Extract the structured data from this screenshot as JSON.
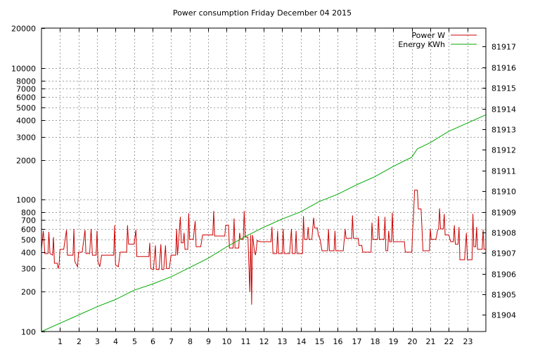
{
  "chart_data": {
    "type": "line",
    "title": "Power consumption Friday December 04 2015",
    "xlabel": "",
    "ylabel": "",
    "x_tick_labels": [
      "1",
      "2",
      "3",
      "4",
      "5",
      "6",
      "7",
      "8",
      "9",
      "10",
      "11",
      "12",
      "13",
      "14",
      "15",
      "16",
      "17",
      "18",
      "19",
      "20",
      "21",
      "22",
      "23"
    ],
    "x_range": [
      0,
      24
    ],
    "y_left": {
      "scale": "log",
      "range": [
        100,
        20000
      ],
      "tick_values": [
        100,
        200,
        300,
        400,
        500,
        600,
        700,
        800,
        1000,
        2000,
        3000,
        4000,
        5000,
        6000,
        7000,
        8000,
        10000,
        20000
      ],
      "tick_labels": [
        "100",
        "200",
        "300",
        "400",
        "500",
        "600",
        "700",
        "800",
        "1000",
        "2000",
        "3000",
        "4000",
        "5000",
        "6000",
        "7000",
        "8000",
        "10000",
        "20000"
      ]
    },
    "y_right": {
      "scale": "linear",
      "range": [
        81903.2,
        81917.9
      ],
      "tick_values": [
        81904,
        81905,
        81906,
        81907,
        81908,
        81909,
        81910,
        81911,
        81912,
        81913,
        81914,
        81915,
        81916,
        81917
      ],
      "tick_labels": [
        "81904",
        "81905",
        "81906",
        "81907",
        "81908",
        "81909",
        "81910",
        "81911",
        "81912",
        "81913",
        "81914",
        "81915",
        "81916",
        "81917"
      ]
    },
    "grid": true,
    "legend_position": "top-right",
    "series": [
      {
        "name": "Power W",
        "color": "#cc0000",
        "axis": "left",
        "points": [
          [
            0.0,
            420
          ],
          [
            0.1,
            580
          ],
          [
            0.18,
            390
          ],
          [
            0.35,
            390
          ],
          [
            0.4,
            570
          ],
          [
            0.46,
            390
          ],
          [
            0.6,
            380
          ],
          [
            0.65,
            520
          ],
          [
            0.7,
            330
          ],
          [
            0.85,
            330
          ],
          [
            0.9,
            300
          ],
          [
            0.95,
            320
          ],
          [
            1.0,
            420
          ],
          [
            1.2,
            420
          ],
          [
            1.35,
            590
          ],
          [
            1.4,
            380
          ],
          [
            1.7,
            380
          ],
          [
            1.75,
            600
          ],
          [
            1.8,
            340
          ],
          [
            1.95,
            310
          ],
          [
            2.0,
            400
          ],
          [
            2.2,
            400
          ],
          [
            2.35,
            590
          ],
          [
            2.4,
            390
          ],
          [
            2.6,
            390
          ],
          [
            2.68,
            600
          ],
          [
            2.75,
            380
          ],
          [
            2.95,
            380
          ],
          [
            3.0,
            580
          ],
          [
            3.05,
            340
          ],
          [
            3.15,
            310
          ],
          [
            3.25,
            380
          ],
          [
            3.5,
            380
          ],
          [
            3.9,
            380
          ],
          [
            3.95,
            640
          ],
          [
            4.0,
            320
          ],
          [
            4.15,
            310
          ],
          [
            4.25,
            400
          ],
          [
            4.6,
            400
          ],
          [
            4.65,
            640
          ],
          [
            4.7,
            460
          ],
          [
            5.0,
            460
          ],
          [
            5.1,
            590
          ],
          [
            5.15,
            370
          ],
          [
            5.8,
            370
          ],
          [
            5.85,
            470
          ],
          [
            5.9,
            300
          ],
          [
            6.05,
            295
          ],
          [
            6.15,
            450
          ],
          [
            6.2,
            295
          ],
          [
            6.35,
            295
          ],
          [
            6.45,
            460
          ],
          [
            6.5,
            295
          ],
          [
            6.6,
            295
          ],
          [
            6.7,
            450
          ],
          [
            6.75,
            300
          ],
          [
            6.9,
            300
          ],
          [
            7.0,
            380
          ],
          [
            7.25,
            380
          ],
          [
            7.3,
            600
          ],
          [
            7.35,
            380
          ],
          [
            7.4,
            480
          ],
          [
            7.5,
            740
          ],
          [
            7.55,
            470
          ],
          [
            7.65,
            470
          ],
          [
            7.7,
            560
          ],
          [
            7.75,
            420
          ],
          [
            7.9,
            420
          ],
          [
            7.95,
            790
          ],
          [
            8.0,
            500
          ],
          [
            8.2,
            500
          ],
          [
            8.3,
            690
          ],
          [
            8.35,
            440
          ],
          [
            8.6,
            440
          ],
          [
            8.7,
            540
          ],
          [
            9.0,
            540
          ],
          [
            9.25,
            540
          ],
          [
            9.3,
            820
          ],
          [
            9.35,
            530
          ],
          [
            9.9,
            530
          ],
          [
            9.95,
            640
          ],
          [
            10.1,
            640
          ],
          [
            10.15,
            430
          ],
          [
            10.35,
            430
          ],
          [
            10.4,
            720
          ],
          [
            10.45,
            430
          ],
          [
            10.65,
            430
          ],
          [
            10.7,
            560
          ],
          [
            10.75,
            500
          ],
          [
            10.9,
            500
          ],
          [
            10.95,
            820
          ],
          [
            11.0,
            520
          ],
          [
            11.15,
            520
          ],
          [
            11.25,
            200
          ],
          [
            11.3,
            540
          ],
          [
            11.35,
            160
          ],
          [
            11.4,
            540
          ],
          [
            11.5,
            410
          ],
          [
            11.55,
            380
          ],
          [
            11.6,
            420
          ],
          [
            11.65,
            490
          ],
          [
            11.8,
            480
          ],
          [
            12.4,
            480
          ],
          [
            12.45,
            620
          ],
          [
            12.5,
            390
          ],
          [
            12.7,
            390
          ],
          [
            12.75,
            580
          ],
          [
            12.8,
            390
          ],
          [
            13.0,
            390
          ],
          [
            13.05,
            600
          ],
          [
            13.1,
            390
          ],
          [
            13.4,
            390
          ],
          [
            13.5,
            600
          ],
          [
            13.55,
            390
          ],
          [
            13.7,
            390
          ],
          [
            13.75,
            580
          ],
          [
            13.8,
            390
          ],
          [
            14.1,
            390
          ],
          [
            14.15,
            750
          ],
          [
            14.2,
            500
          ],
          [
            14.35,
            500
          ],
          [
            14.4,
            620
          ],
          [
            14.45,
            500
          ],
          [
            14.6,
            500
          ],
          [
            14.7,
            730
          ],
          [
            14.75,
            610
          ],
          [
            14.9,
            610
          ],
          [
            14.95,
            540
          ],
          [
            15.05,
            500
          ],
          [
            15.15,
            410
          ],
          [
            15.45,
            410
          ],
          [
            15.5,
            600
          ],
          [
            15.55,
            410
          ],
          [
            15.8,
            410
          ],
          [
            15.85,
            580
          ],
          [
            15.9,
            410
          ],
          [
            16.3,
            410
          ],
          [
            16.4,
            600
          ],
          [
            16.45,
            510
          ],
          [
            16.75,
            510
          ],
          [
            16.8,
            760
          ],
          [
            16.85,
            510
          ],
          [
            17.1,
            510
          ],
          [
            17.15,
            450
          ],
          [
            17.3,
            450
          ],
          [
            17.35,
            400
          ],
          [
            17.8,
            400
          ],
          [
            17.85,
            670
          ],
          [
            17.9,
            500
          ],
          [
            18.15,
            500
          ],
          [
            18.2,
            750
          ],
          [
            18.25,
            500
          ],
          [
            18.5,
            500
          ],
          [
            18.55,
            740
          ],
          [
            18.6,
            410
          ],
          [
            18.7,
            410
          ],
          [
            18.75,
            580
          ],
          [
            18.8,
            480
          ],
          [
            18.9,
            480
          ],
          [
            18.95,
            800
          ],
          [
            19.0,
            480
          ],
          [
            19.3,
            480
          ],
          [
            19.6,
            480
          ],
          [
            19.65,
            400
          ],
          [
            20.0,
            400
          ],
          [
            20.05,
            600
          ],
          [
            20.1,
            800
          ],
          [
            20.15,
            1180
          ],
          [
            20.3,
            1180
          ],
          [
            20.35,
            850
          ],
          [
            20.5,
            850
          ],
          [
            20.55,
            600
          ],
          [
            20.6,
            410
          ],
          [
            20.95,
            410
          ],
          [
            21.0,
            600
          ],
          [
            21.05,
            500
          ],
          [
            21.3,
            500
          ],
          [
            21.4,
            590
          ],
          [
            21.45,
            600
          ],
          [
            21.5,
            860
          ],
          [
            21.55,
            600
          ],
          [
            21.7,
            600
          ],
          [
            21.75,
            780
          ],
          [
            21.8,
            540
          ],
          [
            22.0,
            540
          ],
          [
            22.1,
            480
          ],
          [
            22.25,
            480
          ],
          [
            22.3,
            640
          ],
          [
            22.35,
            460
          ],
          [
            22.5,
            460
          ],
          [
            22.55,
            620
          ],
          [
            22.6,
            350
          ],
          [
            22.85,
            350
          ],
          [
            22.95,
            560
          ],
          [
            23.0,
            350
          ],
          [
            23.25,
            350
          ],
          [
            23.3,
            780
          ],
          [
            23.35,
            440
          ],
          [
            23.45,
            440
          ],
          [
            23.5,
            620
          ],
          [
            23.55,
            420
          ],
          [
            23.8,
            420
          ],
          [
            23.85,
            590
          ],
          [
            23.9,
            420
          ],
          [
            24.0,
            420
          ]
        ]
      },
      {
        "name": "Energy KWh",
        "color": "#00aa00",
        "axis": "right",
        "points": [
          [
            0.0,
            81903.2
          ],
          [
            1.0,
            81903.6
          ],
          [
            2.0,
            81904.0
          ],
          [
            3.0,
            81904.4
          ],
          [
            4.0,
            81904.75
          ],
          [
            5.0,
            81905.2
          ],
          [
            6.0,
            81905.5
          ],
          [
            7.0,
            81905.85
          ],
          [
            8.0,
            81906.3
          ],
          [
            9.0,
            81906.75
          ],
          [
            10.0,
            81907.3
          ],
          [
            11.0,
            81907.8
          ],
          [
            12.0,
            81908.25
          ],
          [
            13.0,
            81908.65
          ],
          [
            14.0,
            81909.0
          ],
          [
            15.0,
            81909.5
          ],
          [
            16.0,
            81909.85
          ],
          [
            17.0,
            81910.3
          ],
          [
            18.0,
            81910.7
          ],
          [
            19.0,
            81911.2
          ],
          [
            20.0,
            81911.65
          ],
          [
            20.3,
            81912.05
          ],
          [
            21.0,
            81912.35
          ],
          [
            22.0,
            81912.9
          ],
          [
            23.0,
            81913.3
          ],
          [
            24.0,
            81913.7
          ]
        ]
      }
    ]
  }
}
